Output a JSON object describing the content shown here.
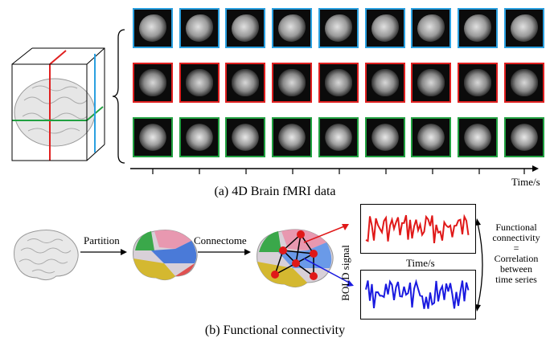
{
  "panel_a": {
    "caption": "(a) 4D Brain fMRI data",
    "time_axis_label": "Time/s",
    "frames_per_row": 9,
    "rows": [
      {
        "view": "sagittal",
        "border_color": "#2aa0e0"
      },
      {
        "view": "coronal",
        "border_color": "#e02020"
      },
      {
        "view": "axial",
        "border_color": "#20a040"
      }
    ]
  },
  "panel_b": {
    "caption": "(b) Functional connectivity",
    "step1_label": "Partition",
    "step2_label": "Connectome",
    "bold_label": "BOLD signal",
    "plot_time_label": "Time/s",
    "right_text": [
      "Functional",
      "connectivity",
      "=",
      "Correlation",
      "between",
      "time series"
    ],
    "signal_colors": {
      "top": "#e01818",
      "bottom": "#1a1ae0"
    }
  }
}
